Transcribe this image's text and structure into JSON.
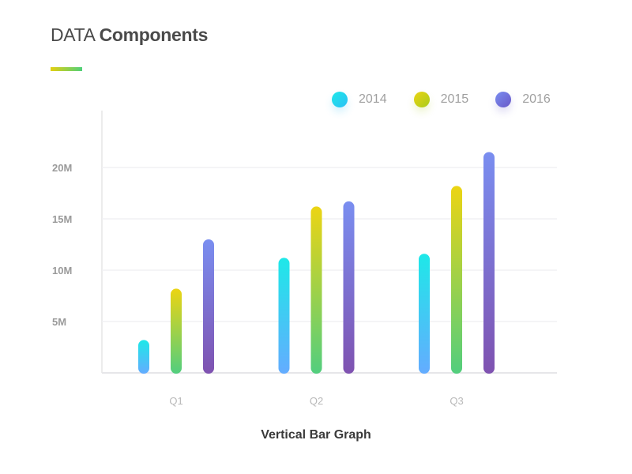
{
  "header": {
    "title_light": "DATA",
    "title_bold": "Components"
  },
  "caption": "Vertical Bar Graph",
  "colors": {
    "2014": [
      "#1ee8e8",
      "#64acff"
    ],
    "2015": [
      "#ecd413",
      "#52ce7e"
    ],
    "2016": [
      "#7a8ef0",
      "#7f52b0"
    ],
    "legend_2014": "#2bc0f5",
    "legend_2015": "#a8cc1c",
    "legend_2016": "#6a58c8"
  },
  "chart_data": {
    "type": "bar",
    "title": "Vertical Bar Graph",
    "categories": [
      "Q1",
      "Q2",
      "Q3"
    ],
    "series": [
      {
        "name": "2014",
        "values": [
          3.2,
          11.2,
          11.6
        ]
      },
      {
        "name": "2015",
        "values": [
          8.2,
          16.2,
          18.2
        ]
      },
      {
        "name": "2016",
        "values": [
          13.0,
          16.7,
          21.5
        ]
      }
    ],
    "yticks": [
      {
        "value": 5,
        "label": "5M"
      },
      {
        "value": 10,
        "label": "10M"
      },
      {
        "value": 15,
        "label": "15M"
      },
      {
        "value": 20,
        "label": "20M"
      }
    ],
    "ylim": [
      0,
      25
    ],
    "yunit": "M",
    "grid": true,
    "legend": "top-right"
  }
}
